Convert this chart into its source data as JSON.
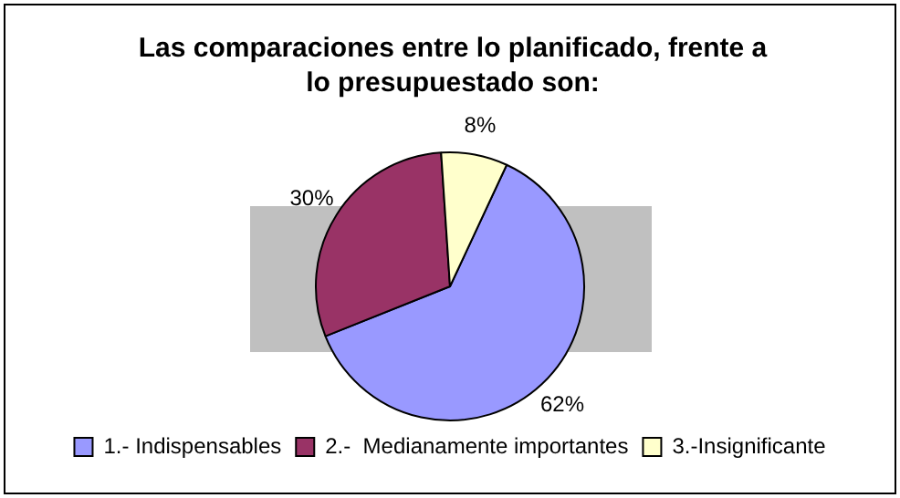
{
  "chart_data": {
    "type": "pie",
    "title": "Las comparaciones entre lo planificado, frente a lo presupuestado son:",
    "categories": [
      "1.- Indispensables",
      "2.-  Medianamente importantes",
      "3.-Insignificante"
    ],
    "values": [
      62,
      30,
      8
    ],
    "colors": [
      "#9999ff",
      "#993366",
      "#ffffcc"
    ],
    "value_labels": [
      "62%",
      "30%",
      "8%"
    ],
    "legend": "bottom"
  }
}
